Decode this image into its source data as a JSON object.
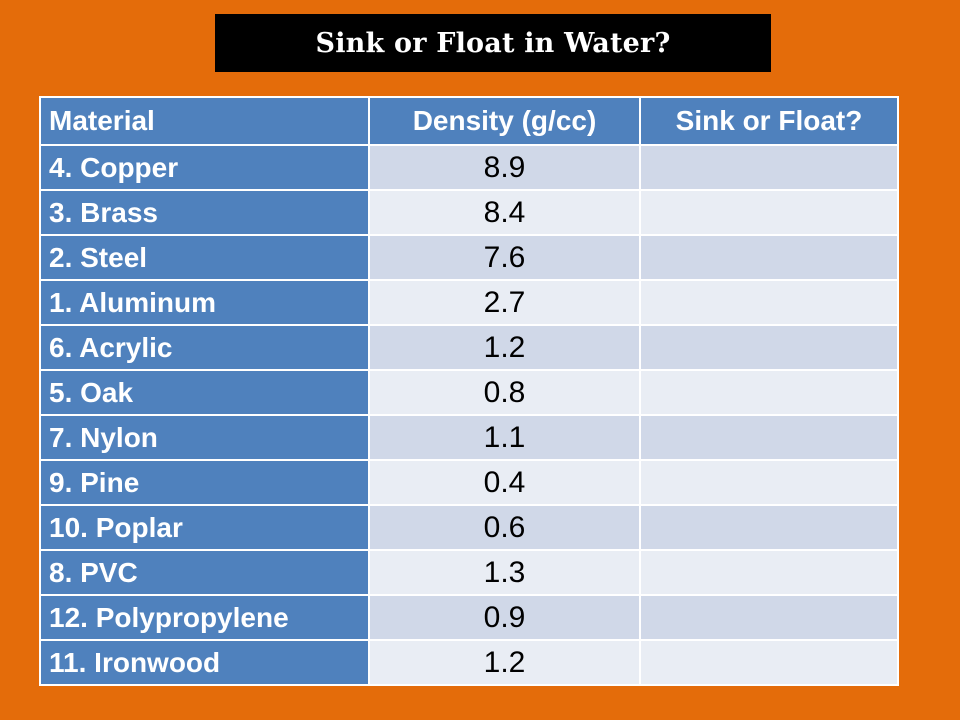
{
  "title": "Sink or Float in Water?",
  "table": {
    "headers": [
      "Material",
      "Density (g/cc)",
      "Sink or Float?"
    ],
    "rows": [
      {
        "material": "4. Copper",
        "density": "8.9",
        "sink_or_float": ""
      },
      {
        "material": "3. Brass",
        "density": "8.4",
        "sink_or_float": ""
      },
      {
        "material": "2. Steel",
        "density": "7.6",
        "sink_or_float": ""
      },
      {
        "material": "1. Aluminum",
        "density": "2.7",
        "sink_or_float": ""
      },
      {
        "material": "6. Acrylic",
        "density": "1.2",
        "sink_or_float": ""
      },
      {
        "material": "5. Oak",
        "density": "0.8",
        "sink_or_float": ""
      },
      {
        "material": "7. Nylon",
        "density": "1.1",
        "sink_or_float": ""
      },
      {
        "material": "9. Pine",
        "density": "0.4",
        "sink_or_float": ""
      },
      {
        "material": "10. Poplar",
        "density": "0.6",
        "sink_or_float": ""
      },
      {
        "material": "8. PVC",
        "density": "1.3",
        "sink_or_float": ""
      },
      {
        "material": "12. Polypropylene",
        "density": "0.9",
        "sink_or_float": ""
      },
      {
        "material": "11. Ironwood",
        "density": "1.2",
        "sink_or_float": ""
      }
    ]
  },
  "colors": {
    "background": "#E46C0A",
    "title_bar": "#000000",
    "header_fill": "#4F81BD",
    "row_band_dark": "#D0D8E8",
    "row_band_light": "#E9EDF4"
  }
}
